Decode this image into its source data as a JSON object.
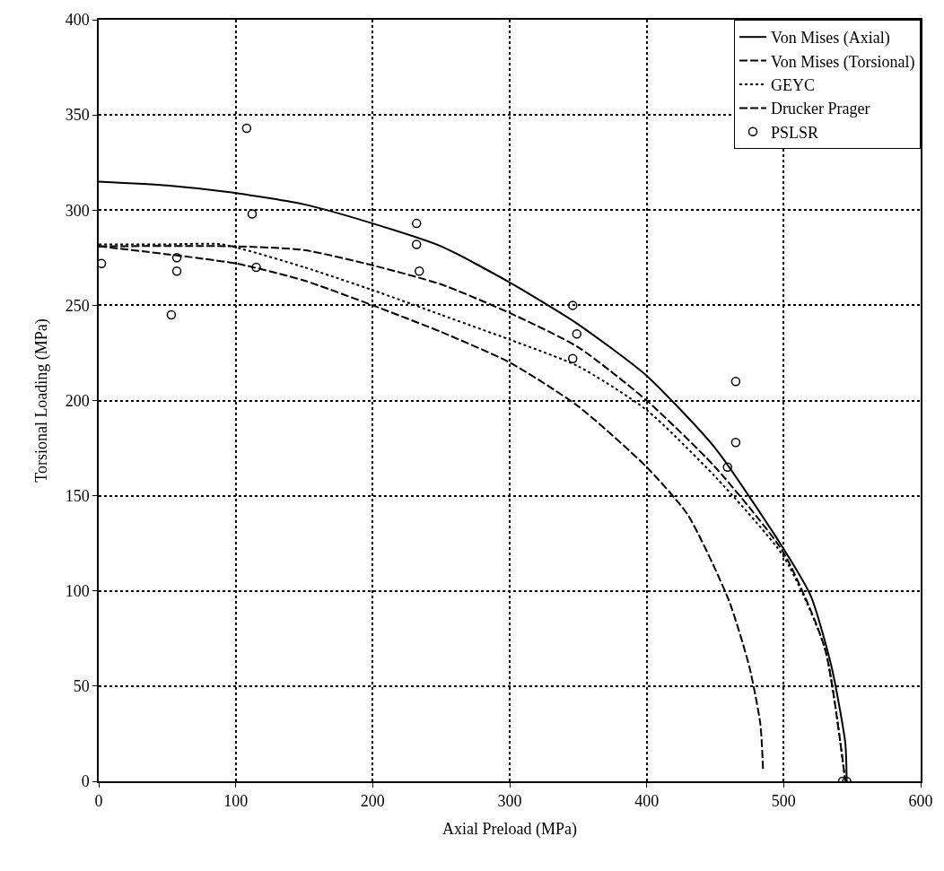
{
  "chart_data": {
    "type": "line",
    "xlabel": "Axial Preload (MPa)",
    "ylabel": "Torsional Loading (MPa)",
    "xlim": [
      0,
      600
    ],
    "xticks": [
      0,
      100,
      200,
      300,
      400,
      500,
      600
    ],
    "ylim": [
      0,
      400
    ],
    "yticks": [
      0,
      50,
      100,
      150,
      200,
      250,
      300,
      350,
      400
    ],
    "grid": true,
    "legend": "top right",
    "series": [
      {
        "name": "Von Mises (Axial)",
        "color": "#000000",
        "line_style": "solid",
        "marker": "none",
        "x": [
          0,
          50,
          100,
          150,
          200,
          250,
          300,
          350,
          400,
          450,
          500,
          520,
          535,
          545,
          546
        ],
        "values": [
          315,
          313,
          309,
          303,
          293,
          281,
          262,
          240,
          213,
          175,
          122,
          97,
          60,
          20,
          0
        ]
      },
      {
        "name": "Von Mises (Torsional)",
        "color": "#000000",
        "line_style": "dashed",
        "marker": "none",
        "x": [
          0,
          100,
          150,
          200,
          250,
          300,
          350,
          400,
          450,
          500,
          530,
          545
        ],
        "values": [
          281,
          281,
          279,
          271,
          261,
          246,
          228,
          200,
          165,
          120,
          70,
          0
        ]
      },
      {
        "name": "GEYC",
        "color": "#000000",
        "line_style": "dotted",
        "marker": "none",
        "x": [
          0,
          50,
          90,
          150,
          200,
          250,
          300,
          350,
          400,
          450,
          500,
          530,
          545
        ],
        "values": [
          282,
          282,
          282,
          270,
          258,
          245,
          232,
          218,
          195,
          160,
          118,
          70,
          0
        ]
      },
      {
        "name": "Drucker Prager",
        "color": "#000000",
        "line_style": "dashed",
        "marker": "none",
        "x": [
          0,
          100,
          150,
          200,
          250,
          300,
          350,
          400,
          430,
          460,
          475,
          483,
          485
        ],
        "values": [
          281,
          272,
          263,
          250,
          236,
          220,
          197,
          165,
          140,
          95,
          60,
          30,
          5
        ]
      },
      {
        "name": "PSLSR",
        "type": "scatter",
        "color": "#000000",
        "marker": "circle",
        "x": [
          2,
          53,
          57,
          57,
          108,
          112,
          115,
          232,
          232,
          234,
          346,
          349,
          346,
          459,
          465,
          465,
          543,
          546
        ],
        "values": [
          272,
          245,
          268,
          275,
          343,
          298,
          270,
          293,
          282,
          268,
          250,
          235,
          222,
          165,
          210,
          178,
          0,
          0
        ]
      }
    ]
  }
}
